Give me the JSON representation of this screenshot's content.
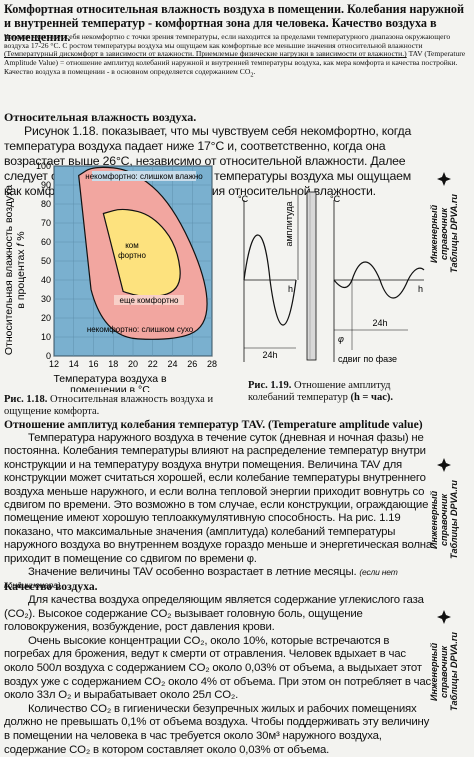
{
  "header": {
    "title": "Комфортная относительная влажность воздуха в помещении. Колебания наружной и внутренней температур - комфортная зона для человека. Качество воздуха в помещении.",
    "intro_1": "Человек чувствует себя некомфортно с точки зрения температуры, если находится за пределами температурного диапазона окружающего воздуха 17-26 °С. С ростом температуры воздуха мы ощущаем как комфортные все меньшие значения относительной влажности",
    "intro_link_1": "(Температурный дискомфорт в зависимости от влажности. Приемлемые физические нагрузки в зависимости от влажности.)",
    "intro_2": "TAV (Temperature Amplitude Value) = отношение амплитуд колебаний наружной и внутренней температуры воздуха, как мера комфорта и качества постройки. Качество воздуха в помещении - в основном определяется содержанием CO",
    "intro_sub": "2",
    "intro_end": "."
  },
  "section_humidity": {
    "heading": "Относительная влажность воздуха.",
    "paragraph": "Рисунок 1.18. показывает, что мы чувствуем себя некомфортно, когда температура воздуха падает ниже 17°С и, соответственно, когда она возрастает выше 26°С, независимо от относительной влажности. Далее следует отметить, что с увеличением температуры воздуха мы ощущаем как комфортные все меньшие значения относительной влажности."
  },
  "sidebar": {
    "line1": "Инженерный справочник",
    "line2": "Таблицы DPVA.ru"
  },
  "figure_118": {
    "ylabel": "Относительная влажность воздуха",
    "ylabel_2": "в процентах",
    "ylabel_f": "f",
    "ylabel_pct": "%",
    "yticks": [
      "100",
      "90",
      "80",
      "70",
      "60",
      "50",
      "40",
      "30",
      "20",
      "10",
      "0"
    ],
    "xticks": [
      "12",
      "14",
      "16",
      "18",
      "20",
      "22",
      "24",
      "26",
      "28"
    ],
    "xlabel_1": "Температура воздуха в",
    "xlabel_2": "помещении в °С",
    "zone_top": "некомфортно: слишком влажно",
    "zone_center_1": "ком",
    "zone_center_2": "фортно",
    "zone_still": "еще комфортно",
    "zone_bottom": "некомфортно: слишком сухо",
    "caption_num": "Рис. 1.18.",
    "caption_text": "Относительная влажность воздуха и ощущение комфорта."
  },
  "figure_119": {
    "unit_left": "°С",
    "unit_right": "°С",
    "amplitude": "амплитуда",
    "label_h": "h",
    "period_left": "24h",
    "period_right": "24h",
    "phi": "φ",
    "shift": "сдвиг по фазе",
    "caption_num": "Рис. 1.19.",
    "caption_text": "Отношение амплитуд колебаний температур",
    "caption_bold": "(h = час)."
  },
  "section_tav": {
    "heading": "Отношение амплитуд колебания температур TAV.",
    "heading_en": "(Temperature amplitude value)",
    "paragraph": "Температура наружного воздуха в течение суток (дневная и ночная фазы) не постоянна. Колебания температуры влияют на распределение температур внутри конструкции и на температуру воздуха внутри помещения. Величина TAV для конструкции может считаться хорошей, если колебание температуры внутреннего воздуха меньше наружного, и если волна тепловой энергии приходит вовнутрь со сдвигом по времени. Это возможно в том случае, если конструкции, ограждающие помещение имеют хорошую теплоаккумулятивную способность. На рис. 1.19 показано, что максимальные значения (амплитуда) колебаний температуры наружного воздуха во внутреннем воздухе гораздо меньше и энергетическая волна приходит в помещение со сдвигом по времени φ.",
    "paragraph_2": "Значение величины TAV особенно возрастает в летние месяцы.",
    "note": "(если нет кондиционера)"
  },
  "section_air": {
    "heading": "Качество воздуха.",
    "paragraph": "Для качества воздуха определяющим является содержание углекислого газа (CO₂). Высокое содержание CO₂ вызывает головную боль, ощущение головокружения, возбуждение, рост давления крови.",
    "paragraph_2": "Очень высокие концентрации CO₂, около 10%, которые встречаются в погребах для брожения, ведут к смерти от отравления. Человек вдыхает в час около 500л воздуха с содержанием CO₂ около 0,03% от объема, а выдыхает этот воздух уже с содержанием CO₂ около 4% от объема. При этом он потребляет в час около 33л O₂ и вырабатывает около 25л CO₂.",
    "paragraph_3": "Количество CO₂ в гигиенически безупречных жилых и рабочих помещениях должно не превышать 0,1% от объема воздуха. Чтобы поддерживать эту величину в помещении на человека в час требуется около 30м³ наружного воздуха, содержание CO₂ в котором составляет около 0,03% от объема."
  },
  "colors": {
    "chart_bg": "#7ab0cf",
    "zone_outer": "#f2a6a0",
    "zone_inner": "#fde27e",
    "line": "#111111"
  },
  "chart_data": {
    "type": "line",
    "xlabel": "Температура воздуха в помещении в °С",
    "ylabel": "Относительная влажность воздуха f в %",
    "xlim": [
      12,
      28
    ],
    "ylim": [
      0,
      100
    ],
    "series": [
      {
        "name": "еще комфортно",
        "x": [
          14.5,
          16,
          20,
          24,
          27.5,
          27.5,
          24,
          17,
          14.5
        ],
        "y": [
          95,
          100,
          98,
          80,
          40,
          15,
          8,
          10,
          60
        ]
      },
      {
        "name": "комфортно",
        "x": [
          17,
          19,
          22,
          24.5,
          25,
          21,
          17
        ],
        "y": [
          75,
          78,
          74,
          58,
          34,
          30,
          38
        ]
      }
    ]
  }
}
